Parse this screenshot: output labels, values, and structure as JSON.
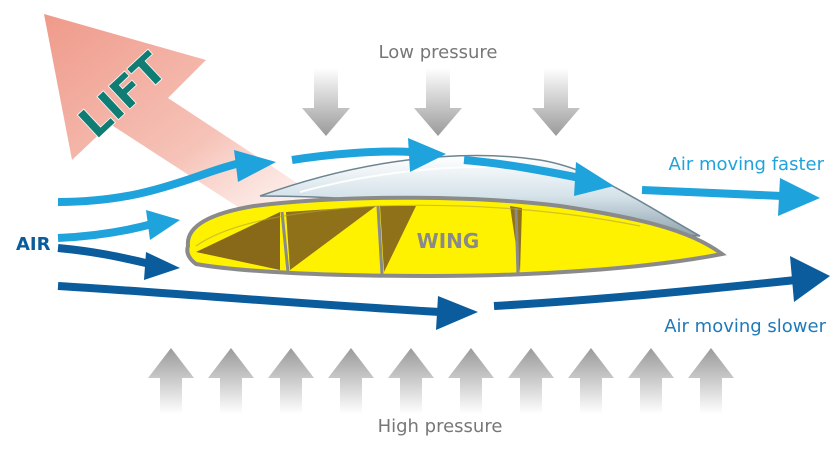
{
  "labels": {
    "lift": "LIFT",
    "low_pressure": "Low pressure",
    "high_pressure": "High pressure",
    "air": "AIR",
    "wing": "WING",
    "air_faster": "Air moving faster",
    "air_slower": "Air moving slower"
  },
  "colors": {
    "lift_arrow": "#f2a99a",
    "lift_text": "#0f7d73",
    "fast_air": "#1fa3dc",
    "slow_air": "#0a5c9c",
    "pressure_arrow": "#a8a8a8",
    "wing_fill": "#fff200",
    "wing_rib": "#7a5a1c",
    "label_gray": "#777777"
  },
  "icons": {
    "lift": "lift-arrow-icon",
    "low_pressure": "down-arrow-icon",
    "high_pressure": "up-arrow-icon"
  },
  "counts": {
    "low_pressure_arrows": 3,
    "high_pressure_arrows": 10
  }
}
